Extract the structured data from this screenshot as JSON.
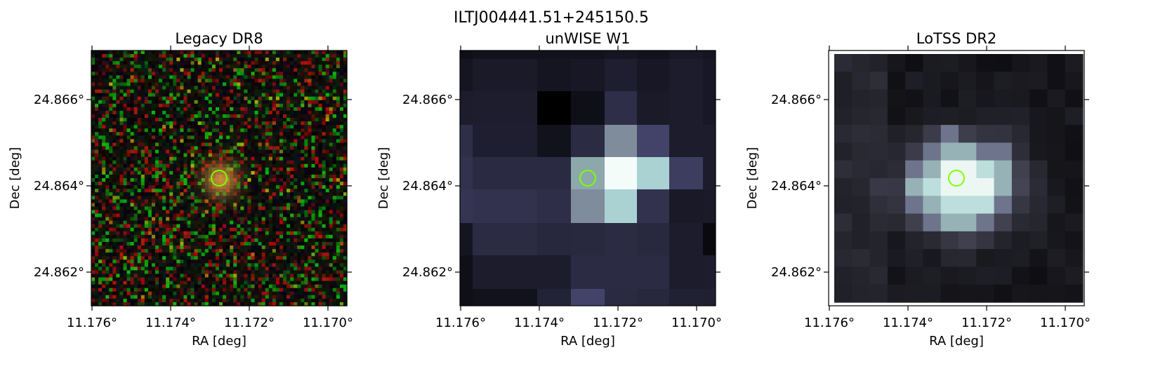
{
  "figure": {
    "suptitle": "ILTJ004441.51+245150.5"
  },
  "panels": [
    {
      "title": "Legacy DR8",
      "kind": "optical-rgb",
      "xlabel": "RA [deg]",
      "ylabel": "Dec [deg]",
      "xticks": [
        "11.176°",
        "11.174°",
        "11.172°",
        "11.170°"
      ],
      "yticks": [
        "24.866°",
        "24.864°",
        "24.862°"
      ]
    },
    {
      "title": "unWISE W1",
      "kind": "infrared-gray",
      "xlabel": "RA [deg]",
      "ylabel": "Dec [deg]",
      "xticks": [
        "11.176°",
        "11.174°",
        "11.172°",
        "11.170°"
      ],
      "yticks": [
        "24.866°",
        "24.864°",
        "24.862°"
      ]
    },
    {
      "title": "LoTSS DR2",
      "kind": "radio-gray",
      "xlabel": "RA [deg]",
      "ylabel": "Dec [deg]",
      "xticks": [
        "11.176°",
        "11.174°",
        "11.172°",
        "11.170°"
      ],
      "yticks": [
        "24.866°",
        "24.864°",
        "24.862°"
      ]
    }
  ],
  "marker": {
    "shape": "circle",
    "color": "#7fff00"
  }
}
